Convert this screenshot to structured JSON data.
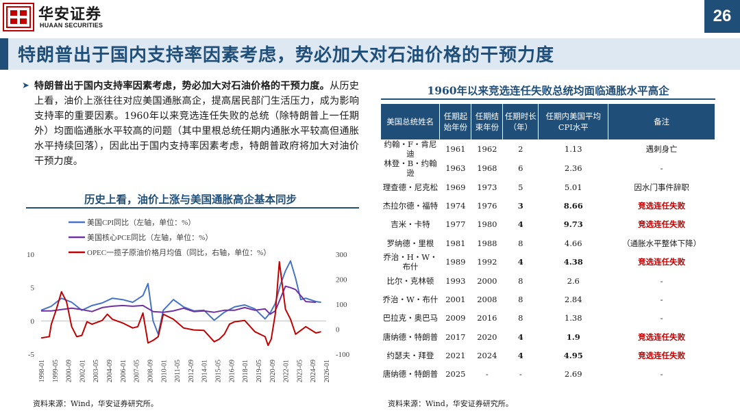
{
  "header": {
    "brand_cn": "华安证券",
    "brand_en": "HUAAN SECURITIES",
    "page_number": "26",
    "title": "特朗普出于国内支持率因素考虑，势必加大对石油价格的干预力度"
  },
  "body": {
    "lead_bold": "特朗普出于国内支持率因素考虑，势必加大对石油价格的干预力度。",
    "text": "从历史上看，油价上涨往往对应美国通胀高企，提高居民部门生活压力，成为影响支持率的重要因素。1960年以来竞选连任失败的总统（除特朗普上一任期外）均面临通胀水平较高的问题（其中里根总统任期内通胀水平较高但通胀水平持续回落），因此出于国内支持率因素考虑，特朗普政府将加大对油价干预力度。"
  },
  "chart": {
    "title": "历史上看，油价上涨与美国通胀高企基本同步",
    "source": "资料来源：Wind，华安证券研究所。"
  },
  "chart_data": {
    "type": "line",
    "title": "历史上看，油价上涨与美国通胀高企基本同步",
    "legend_placement": "top-left",
    "x_ticks": [
      "1998-01",
      "1999-05",
      "2000-09",
      "2002-01",
      "2003-05",
      "2004-09",
      "2006-01",
      "2007-05",
      "2008-09",
      "2010-01",
      "2011-05",
      "2012-09",
      "2014-01",
      "2015-05",
      "2016-09",
      "2018-01",
      "2019-05",
      "2020-09",
      "2022-01",
      "2023-05",
      "2024-09",
      "2026-01"
    ],
    "y_left": {
      "ticks": [
        "10",
        "5",
        "0",
        "-5"
      ],
      "range": [
        -5,
        10
      ]
    },
    "y_right": {
      "ticks": [
        "300",
        "200",
        "100",
        "0",
        "-100"
      ],
      "range": [
        -100,
        300
      ]
    },
    "series": [
      {
        "name": "美国CPI同比（左轴，单位：%）",
        "axis": "left",
        "color": "#4472c4",
        "x": [
          1998,
          1999,
          2000,
          2001,
          2002,
          2003,
          2004,
          2005,
          2006,
          2007,
          2008,
          2008.5,
          2009,
          2009.5,
          2010,
          2011,
          2012,
          2013,
          2014,
          2015,
          2016,
          2017,
          2018,
          2019,
          2020,
          2020.5,
          2021,
          2021.5,
          2022,
          2022.5,
          2023,
          2023.5,
          2024,
          2025,
          2025.5
        ],
        "values": [
          1.6,
          2.2,
          3.4,
          2.8,
          1.6,
          2.3,
          2.7,
          3.4,
          3.2,
          2.8,
          3.8,
          5.6,
          0.0,
          -2.0,
          1.6,
          3.2,
          2.1,
          1.5,
          1.6,
          0.1,
          1.3,
          2.1,
          2.4,
          1.8,
          0.3,
          1.2,
          2.6,
          5.4,
          7.5,
          9.0,
          6.4,
          3.2,
          3.4,
          2.9,
          2.8
        ]
      },
      {
        "name": "美国核心PCE同比（左轴，单位：%）",
        "axis": "left",
        "color": "#7030a0",
        "x": [
          1998,
          1999,
          2000,
          2001,
          2002,
          2003,
          2004,
          2005,
          2006,
          2007,
          2008,
          2009,
          2010,
          2011,
          2012,
          2013,
          2014,
          2015,
          2016,
          2017,
          2018,
          2019,
          2020,
          2020.5,
          2021,
          2022,
          2022.5,
          2023,
          2024,
          2025
        ],
        "values": [
          1.5,
          1.5,
          1.7,
          1.9,
          1.7,
          1.4,
          2.0,
          2.2,
          2.3,
          2.2,
          2.3,
          1.4,
          1.3,
          1.5,
          1.9,
          1.4,
          1.5,
          1.3,
          1.6,
          1.6,
          2.0,
          1.6,
          1.8,
          1.0,
          1.5,
          5.2,
          5.0,
          4.7,
          2.9,
          2.8
        ]
      },
      {
        "name": "OPEC一揽子原油价格月均值（同比，右轴，单位：%）",
        "axis": "right",
        "color": "#c00000",
        "x": [
          1998,
          1998.8,
          1999,
          1999.5,
          2000,
          2000.5,
          2001,
          2001.5,
          2002,
          2002.5,
          2003,
          2004,
          2004.5,
          2005,
          2006,
          2007,
          2007.5,
          2008,
          2008.5,
          2009,
          2009.5,
          2010,
          2011,
          2012,
          2013,
          2014,
          2015,
          2015.5,
          2016,
          2016.5,
          2017,
          2018,
          2019,
          2020,
          2020.3,
          2020.6,
          2021,
          2021.4,
          2022,
          2022.5,
          2023,
          2023.5,
          2024,
          2025,
          2025.5
        ],
        "values": [
          -35,
          -30,
          20,
          80,
          150,
          110,
          10,
          -30,
          -25,
          30,
          20,
          35,
          60,
          40,
          25,
          5,
          10,
          65,
          -55,
          -45,
          -30,
          60,
          40,
          5,
          -3,
          -5,
          -50,
          -40,
          -20,
          20,
          30,
          35,
          -10,
          -30,
          -65,
          -40,
          60,
          270,
          80,
          40,
          -20,
          -5,
          10,
          -15,
          -10
        ]
      }
    ]
  },
  "table": {
    "title": "1960年以来竞选连任失败总统均面临通胀水平高企",
    "headers": [
      "美国总统姓名",
      "任期起\n始年份",
      "任期结\n束年份",
      "任期时长\n（年）",
      "任期内美国平均\nCPI水平",
      "备注"
    ],
    "rows": [
      {
        "name": "约翰・F・肯尼迪",
        "start": "1961",
        "end": "1962",
        "years": "2",
        "cpi": "1.13",
        "note": "遇刺身亡",
        "red": false
      },
      {
        "name": "林登・B・约翰逊",
        "start": "1963",
        "end": "1968",
        "years": "6",
        "cpi": "2.36",
        "note": "-",
        "red": false
      },
      {
        "name": "理查德・尼克松",
        "start": "1969",
        "end": "1973",
        "years": "5",
        "cpi": "5.01",
        "note": "因水门事件辞职",
        "red": false
      },
      {
        "name": "杰拉尔德・福特",
        "start": "1974",
        "end": "1976",
        "years": "3",
        "cpi": "8.66",
        "note": "竞选连任失败",
        "red": true
      },
      {
        "name": "吉米・卡特",
        "start": "1977",
        "end": "1980",
        "years": "4",
        "cpi": "9.73",
        "note": "竞选连任失败",
        "red": true
      },
      {
        "name": "罗纳德・里根",
        "start": "1981",
        "end": "1988",
        "years": "8",
        "cpi": "4.66",
        "note": "（通胀水平整体下降）",
        "red": false
      },
      {
        "name": "乔治・H・W・布什",
        "start": "1989",
        "end": "1992",
        "years": "4",
        "cpi": "4.38",
        "note": "竞选连任失败",
        "red": true
      },
      {
        "name": "比尔・克林顿",
        "start": "1993",
        "end": "2000",
        "years": "8",
        "cpi": "2.6",
        "note": "-",
        "red": false
      },
      {
        "name": "乔治・W・布什",
        "start": "2001",
        "end": "2008",
        "years": "8",
        "cpi": "2.84",
        "note": "-",
        "red": false
      },
      {
        "name": "巴拉克・奥巴马",
        "start": "2009",
        "end": "2016",
        "years": "8",
        "cpi": "1.38",
        "note": "-",
        "red": false
      },
      {
        "name": "唐纳德・特朗普",
        "start": "2017",
        "end": "2020",
        "years": "4",
        "cpi": "1.9",
        "note": "竞选连任失败",
        "red": true
      },
      {
        "name": "约瑟夫・拜登",
        "start": "2021",
        "end": "2024",
        "years": "4",
        "cpi": "4.95",
        "note": "竞选连任失败",
        "red": true
      },
      {
        "name": "唐纳德・特朗普",
        "start": "2025",
        "end": "-",
        "years": "-",
        "cpi": "2.69",
        "note": "-",
        "red": false
      }
    ],
    "source": "资料来源：Wind，华安证券研究所。"
  },
  "colors": {
    "brand_blue": "#1f4e79",
    "title_band": "#dde8f3",
    "logo_red": "#c00000",
    "alert_red": "#c00000"
  }
}
